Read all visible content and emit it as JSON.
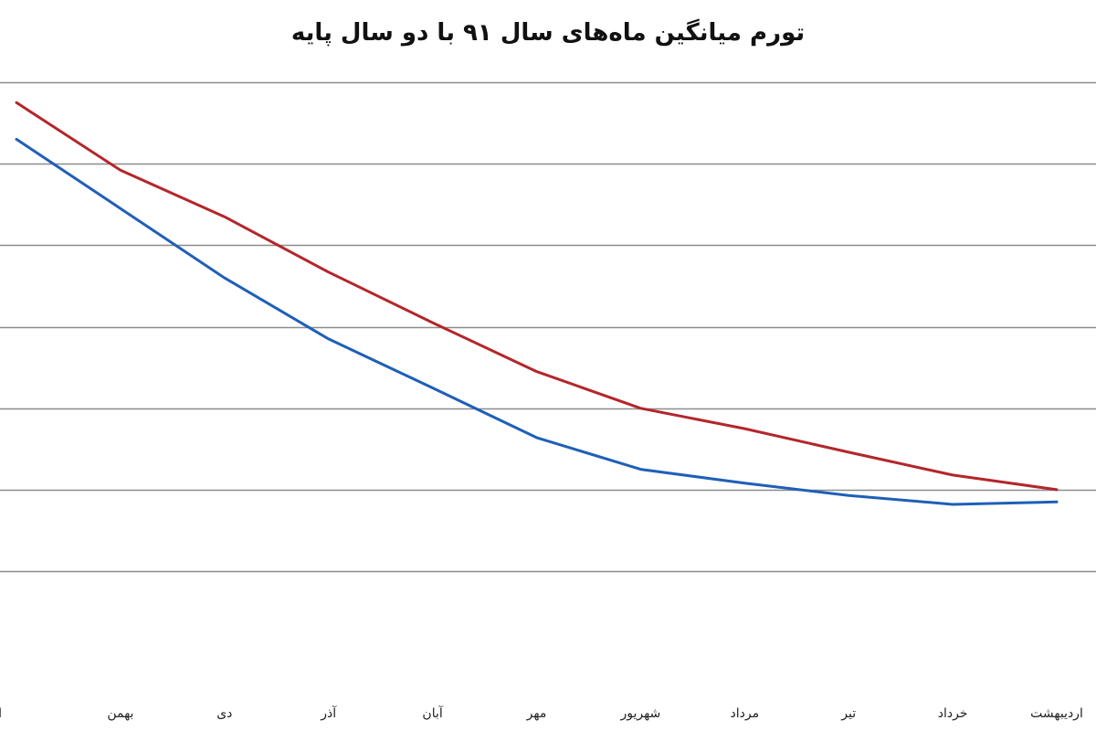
{
  "chart_data": {
    "type": "line",
    "title": "تورم میانگین ماه‌های سال ۹۱ با دو سال پایه",
    "xlabel": "",
    "ylabel": "",
    "categories": [
      "اردیبهشت",
      "خرداد",
      "تیر",
      "مرداد",
      "شهریور",
      "مهر",
      "آبان",
      "آذر",
      "دی",
      "بهمن",
      "اسفند"
    ],
    "series": [
      {
        "color": "#b3262b",
        "values": [
          1.0,
          1.18,
          1.46,
          1.75,
          2.0,
          2.45,
          3.05,
          3.67,
          4.35,
          4.92,
          5.75
        ]
      },
      {
        "color": "#1f5fb8",
        "values": [
          0.85,
          0.82,
          0.93,
          1.08,
          1.25,
          1.64,
          2.25,
          2.85,
          3.6,
          4.45,
          5.3
        ]
      }
    ],
    "ylim": [
      -1.4,
      6.0
    ],
    "y_gridlines": [
      0,
      1,
      2,
      3,
      4,
      5,
      6
    ],
    "grid": true,
    "legend": "none"
  }
}
